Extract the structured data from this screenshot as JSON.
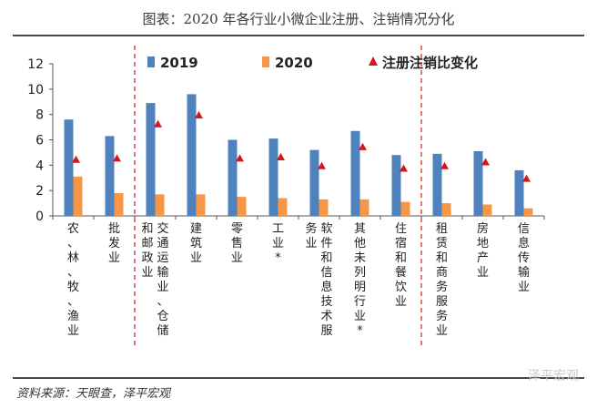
{
  "header": {
    "title": "图表：2020 年各行业小微企业注册、注销情况分化"
  },
  "footer": {
    "source": "资料来源：天眼查，泽平宏观",
    "watermark": "泽平宏观"
  },
  "chart_data": {
    "type": "bar",
    "title": "",
    "xlabel": "",
    "ylabel": "",
    "ylim": [
      0,
      12
    ],
    "yticks": [
      0,
      2,
      4,
      6,
      8,
      10,
      12
    ],
    "grid": false,
    "legend_position": "top",
    "categories": [
      "农、林、牧、渔业",
      "批发业",
      "交通运输业、仓储和邮政业",
      "建筑业",
      "零售业",
      "工业*",
      "软件和信息技术服务业",
      "其他未列明行业*",
      "住宿和餐饮业",
      "租赁和商务服务业",
      "房地产业",
      "信息传输业"
    ],
    "series": [
      {
        "name": "2019",
        "kind": "bar",
        "color": "#4f81bd",
        "values": [
          7.6,
          6.3,
          8.9,
          9.6,
          6.0,
          6.1,
          5.2,
          6.7,
          4.8,
          4.9,
          5.1,
          3.6
        ]
      },
      {
        "name": "2020",
        "kind": "bar",
        "color": "#f79646",
        "values": [
          3.1,
          1.8,
          1.7,
          1.7,
          1.5,
          1.4,
          1.3,
          1.3,
          1.1,
          1.0,
          0.9,
          0.6
        ]
      },
      {
        "name": "注册注销比变化",
        "kind": "marker",
        "color": "#d9141b",
        "values": [
          4.4,
          4.5,
          7.2,
          7.9,
          4.5,
          4.6,
          3.9,
          5.4,
          3.7,
          3.9,
          4.2,
          2.9
        ]
      }
    ],
    "dividers_after": [
      1,
      8
    ]
  }
}
